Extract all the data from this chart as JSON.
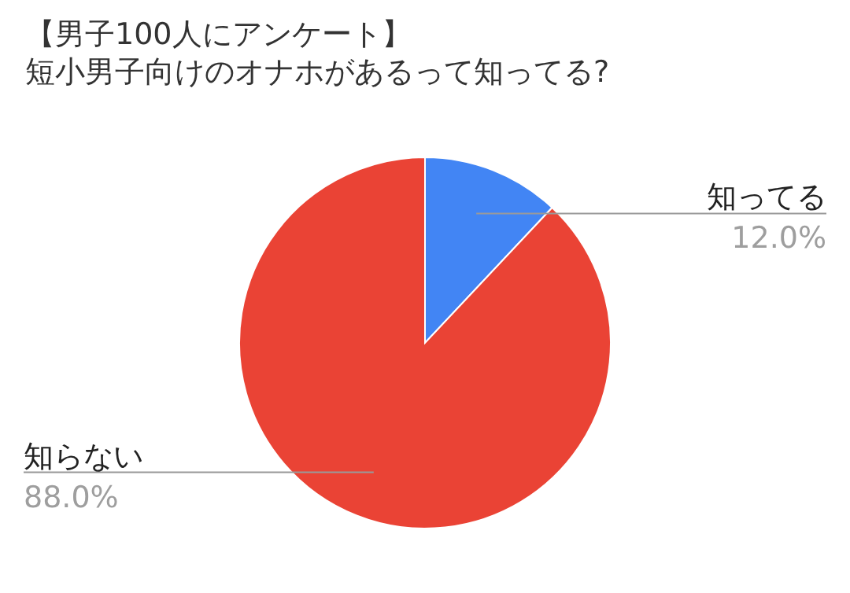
{
  "chart_data": {
    "type": "pie",
    "title": "【男子100人にアンケート】",
    "subtitle": "短小男子向けのオナホがあるって知ってる?",
    "categories": [
      "知ってる",
      "知らない"
    ],
    "values": [
      12.0,
      88.0
    ],
    "colors": [
      "#4285f4",
      "#ea4335"
    ],
    "value_labels": [
      "12.0%",
      "88.0%"
    ]
  }
}
